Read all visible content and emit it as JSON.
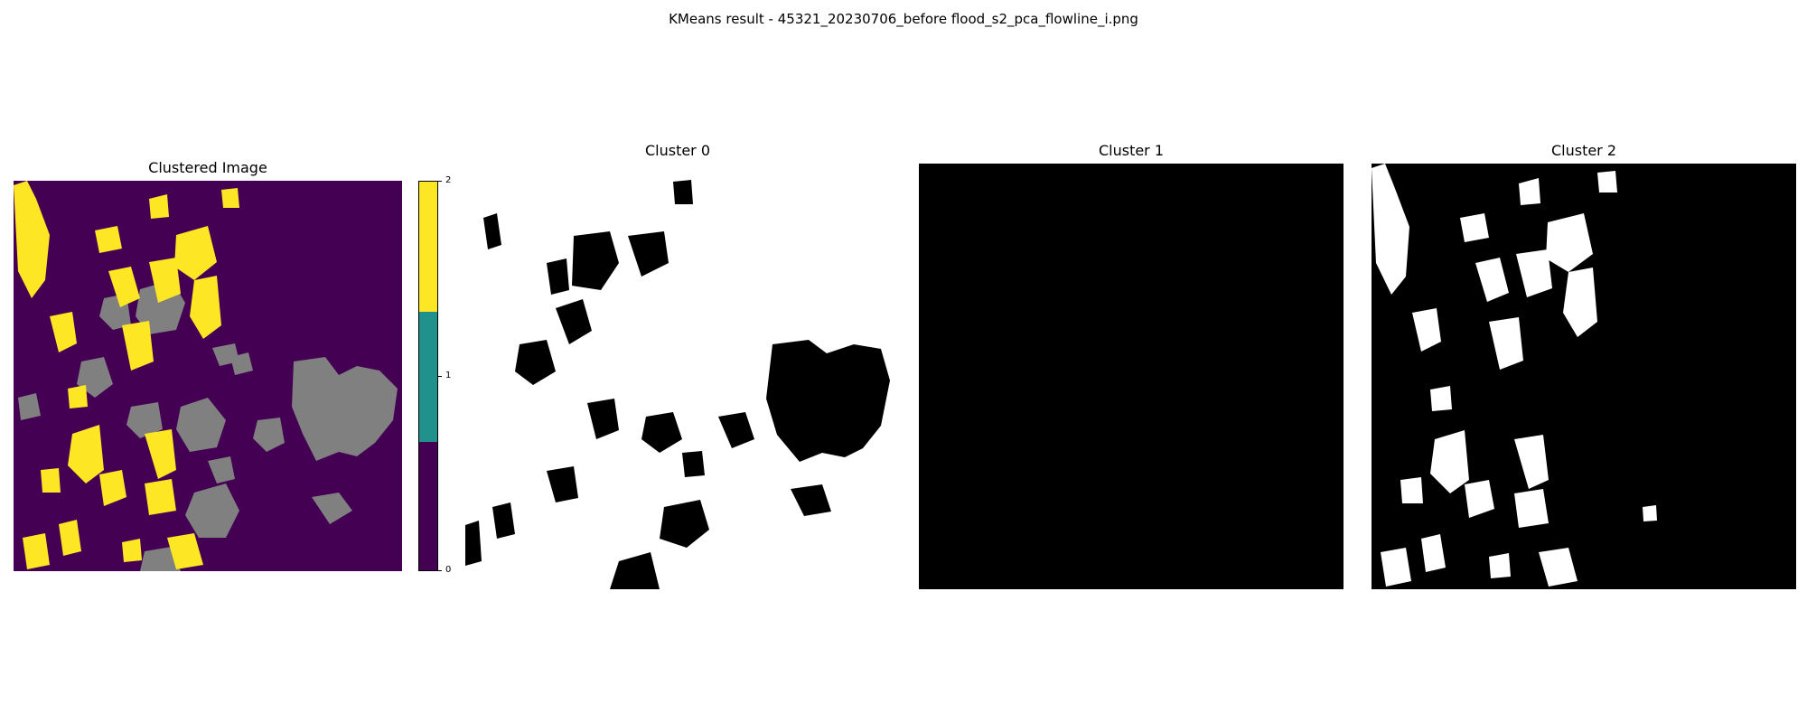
{
  "figure": {
    "suptitle": "KMeans result - 45321_20230706_before flood_s2_pca_flowline_i.png"
  },
  "chart_data": [
    {
      "type": "heatmap",
      "title": "Clustered Image",
      "colormap": "viridis",
      "clusters": [
        {
          "label": "0",
          "color": "#440154"
        },
        {
          "label": "1",
          "color": "#21918c"
        },
        {
          "label": "2",
          "color": "#fde725"
        }
      ],
      "overlay_color": "#808080",
      "colorbar": {
        "ticks": [
          "0",
          "1",
          "2"
        ],
        "range": [
          0,
          2
        ]
      }
    },
    {
      "type": "heatmap",
      "title": "Cluster 0",
      "foreground": "#ffffff",
      "background": "#000000"
    },
    {
      "type": "heatmap",
      "title": "Cluster 1",
      "foreground": "#ffffff",
      "background": "#000000"
    },
    {
      "type": "heatmap",
      "title": "Cluster 2",
      "foreground": "#ffffff",
      "background": "#000000"
    }
  ]
}
